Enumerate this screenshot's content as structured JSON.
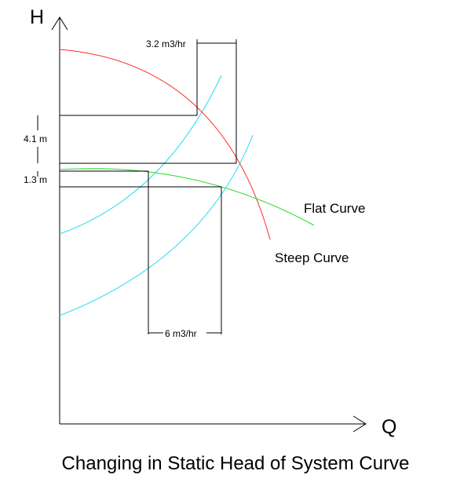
{
  "axes": {
    "y_label": "H",
    "x_label": "Q"
  },
  "dimensions": {
    "top_flow": "3.2 m3/hr",
    "bottom_flow": "6 m3/hr",
    "head_steep": "4.1 m",
    "head_flat": "1.3 m"
  },
  "curves": {
    "flat_label": "Flat Curve",
    "steep_label": "Steep Curve"
  },
  "colors": {
    "steep_curve": "#ff2a2a",
    "flat_curve": "#22dd22",
    "system_curve": "#22ddee",
    "lines": "#000000"
  },
  "caption": "Changing in Static Head of System Curve"
}
